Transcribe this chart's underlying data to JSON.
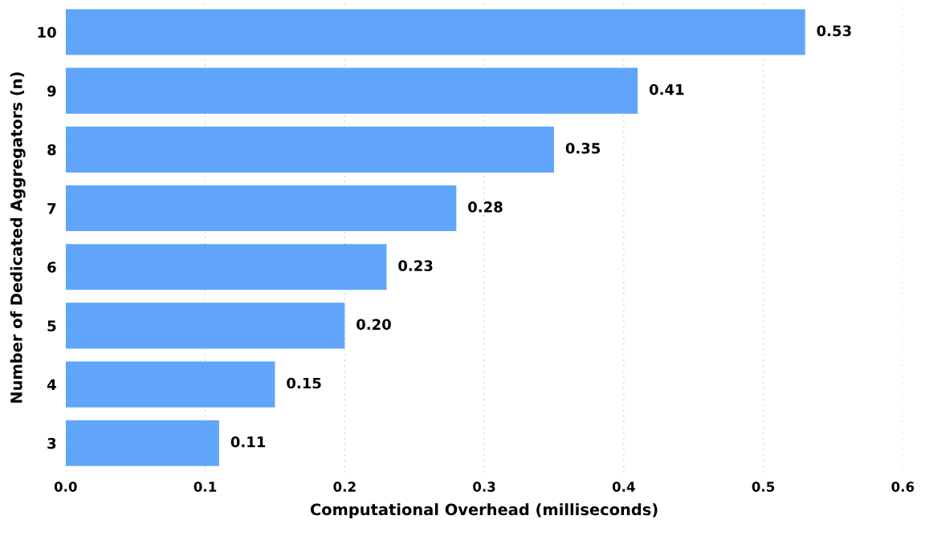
{
  "chart_data": {
    "type": "bar",
    "orientation": "horizontal",
    "xlabel": "Computational Overhead (milliseconds)",
    "ylabel": "Number of Dedicated Aggregators (n)",
    "categories": [
      "10",
      "9",
      "8",
      "7",
      "6",
      "5",
      "4",
      "3"
    ],
    "values": [
      0.53,
      0.41,
      0.35,
      0.28,
      0.23,
      0.2,
      0.15,
      0.11
    ],
    "value_labels": [
      "0.53",
      "0.41",
      "0.35",
      "0.28",
      "0.23",
      "0.20",
      "0.15",
      "0.11"
    ],
    "color": "#60a5fa",
    "xlim": [
      0,
      0.6
    ],
    "xticks": [
      {
        "value": 0,
        "label": "0.0"
      },
      0.1,
      0.2,
      0.3,
      0.4,
      0.5,
      0.6
    ],
    "grid": "x"
  }
}
